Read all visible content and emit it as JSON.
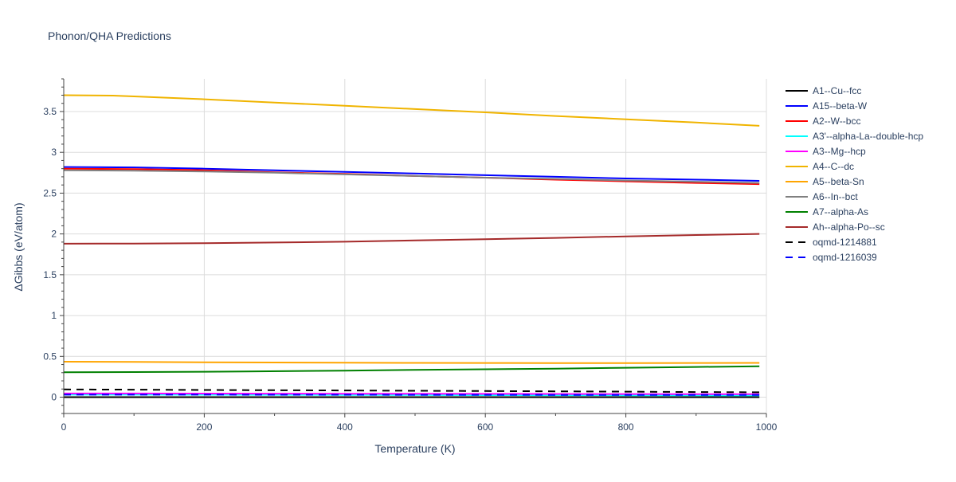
{
  "chart_data": {
    "type": "line",
    "title": "Phonon/QHA Predictions",
    "xlabel": "Temperature (K)",
    "ylabel": "ΔGibbs (eV/atom)",
    "xlim": [
      0,
      1000
    ],
    "ylim": [
      -0.2,
      3.9
    ],
    "xticks": [
      0,
      200,
      400,
      600,
      800,
      1000
    ],
    "xtick_labels": [
      "0",
      "200",
      "400",
      "600",
      "800",
      "1000"
    ],
    "yticks": [
      0,
      0.5,
      1,
      1.5,
      2,
      2.5,
      3,
      3.5
    ],
    "ytick_labels": [
      "0",
      "0.5",
      "1",
      "1.5",
      "2",
      "2.5",
      "3",
      "3.5"
    ],
    "grid": true,
    "legend_position": "right",
    "series": [
      {
        "name": "A1--Cu--fcc",
        "color": "#000000",
        "dash": "solid",
        "x": [
          0,
          100,
          200,
          300,
          400,
          500,
          600,
          700,
          800,
          900,
          990
        ],
        "y": [
          0.0,
          0.0,
          0.0,
          0.0,
          0.0,
          0.0,
          0.0,
          0.0,
          0.0,
          0.0,
          0.0
        ]
      },
      {
        "name": "A15--beta-W",
        "color": "#0000ff",
        "dash": "solid",
        "x": [
          0,
          100,
          200,
          300,
          400,
          500,
          600,
          700,
          800,
          900,
          990
        ],
        "y": [
          2.82,
          2.815,
          2.8,
          2.78,
          2.76,
          2.74,
          2.72,
          2.7,
          2.68,
          2.665,
          2.65
        ]
      },
      {
        "name": "A2--W--bcc",
        "color": "#ff0000",
        "dash": "solid",
        "x": [
          0,
          100,
          200,
          300,
          400,
          500,
          600,
          700,
          800,
          900,
          990
        ],
        "y": [
          2.8,
          2.795,
          2.78,
          2.755,
          2.735,
          2.71,
          2.69,
          2.665,
          2.645,
          2.625,
          2.61
        ]
      },
      {
        "name": "A3'--alpha-La--double-hcp",
        "color": "#00ffff",
        "dash": "solid",
        "x": [
          0,
          100,
          200,
          300,
          400,
          500,
          600,
          700,
          800,
          900,
          990
        ],
        "y": [
          0.03,
          0.03,
          0.029,
          0.028,
          0.027,
          0.026,
          0.025,
          0.024,
          0.023,
          0.022,
          0.021
        ]
      },
      {
        "name": "A3--Mg--hcp",
        "color": "#ff00ff",
        "dash": "solid",
        "x": [
          0,
          100,
          200,
          300,
          400,
          500,
          600,
          700,
          800,
          900,
          990
        ],
        "y": [
          0.045,
          0.045,
          0.044,
          0.043,
          0.042,
          0.041,
          0.04,
          0.039,
          0.038,
          0.037,
          0.036
        ]
      },
      {
        "name": "A4--C--dc",
        "color": "#f0b400",
        "dash": "solid",
        "x": [
          0,
          70,
          100,
          200,
          300,
          400,
          500,
          600,
          700,
          800,
          900,
          990
        ],
        "y": [
          3.7,
          3.695,
          3.685,
          3.65,
          3.61,
          3.57,
          3.53,
          3.49,
          3.445,
          3.405,
          3.365,
          3.325
        ]
      },
      {
        "name": "A5--beta-Sn",
        "color": "#ffa500",
        "dash": "solid",
        "x": [
          0,
          100,
          200,
          300,
          400,
          500,
          600,
          700,
          800,
          900,
          990
        ],
        "y": [
          0.435,
          0.432,
          0.428,
          0.425,
          0.422,
          0.42,
          0.419,
          0.418,
          0.418,
          0.419,
          0.42
        ]
      },
      {
        "name": "A6--In--bct",
        "color": "#808080",
        "dash": "solid",
        "x": [
          0,
          100,
          200,
          300,
          400,
          500,
          600,
          700,
          800,
          900,
          990
        ],
        "y": [
          2.78,
          2.775,
          2.765,
          2.75,
          2.73,
          2.71,
          2.69,
          2.675,
          2.655,
          2.64,
          2.625
        ]
      },
      {
        "name": "A7--alpha-As",
        "color": "#008000",
        "dash": "solid",
        "x": [
          0,
          100,
          200,
          260,
          400,
          500,
          600,
          700,
          800,
          900,
          990
        ],
        "y": [
          0.305,
          0.308,
          0.312,
          0.315,
          0.325,
          0.335,
          0.342,
          0.35,
          0.36,
          0.37,
          0.378
        ]
      },
      {
        "name": "Ah--alpha-Po--sc",
        "color": "#a52a2a",
        "dash": "solid",
        "x": [
          0,
          100,
          200,
          300,
          400,
          500,
          600,
          700,
          800,
          900,
          990
        ],
        "y": [
          1.88,
          1.882,
          1.886,
          1.895,
          1.905,
          1.92,
          1.935,
          1.952,
          1.97,
          1.987,
          2.0
        ]
      },
      {
        "name": "oqmd-1214881",
        "color": "#000000",
        "dash": "dash",
        "x": [
          0,
          100,
          200,
          300,
          400,
          500,
          600,
          700,
          800,
          900,
          990
        ],
        "y": [
          0.095,
          0.092,
          0.088,
          0.085,
          0.082,
          0.078,
          0.075,
          0.071,
          0.067,
          0.063,
          0.06
        ]
      },
      {
        "name": "oqmd-1216039",
        "color": "#0000ff",
        "dash": "dash",
        "x": [
          0,
          100,
          200,
          300,
          400,
          500,
          600,
          700,
          800,
          900,
          990
        ],
        "y": [
          0.03,
          0.03,
          0.03,
          0.029,
          0.029,
          0.028,
          0.028,
          0.027,
          0.027,
          0.026,
          0.026
        ]
      }
    ]
  }
}
